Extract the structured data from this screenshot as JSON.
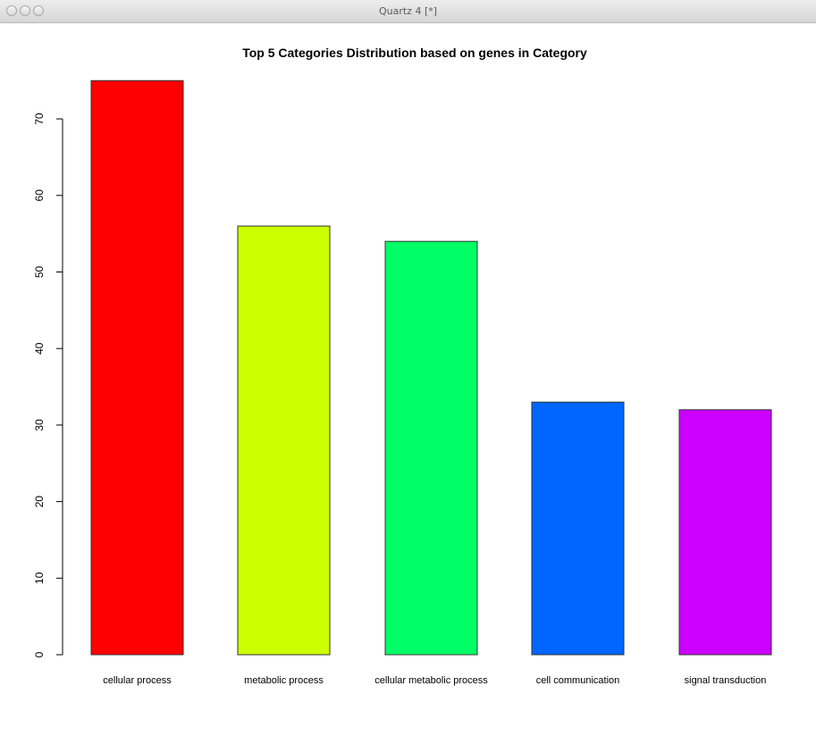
{
  "window": {
    "title": "Quartz 4 [*]"
  },
  "chart_data": {
    "type": "bar",
    "title": "Top 5 Categories Distribution based on genes in Category",
    "xlabel": "",
    "ylabel": "",
    "categories": [
      "cellular process",
      "metabolic process",
      "cellular metabolic process",
      "cell communication",
      "signal transduction"
    ],
    "values": [
      75,
      56,
      54,
      33,
      32
    ],
    "colors": [
      "#ff0000",
      "#ccff00",
      "#00ff66",
      "#0066ff",
      "#cc00ff"
    ],
    "yticks": [
      0,
      10,
      20,
      30,
      40,
      50,
      60,
      70
    ],
    "ylim": [
      0,
      75
    ],
    "grid": false,
    "legend": "none"
  }
}
